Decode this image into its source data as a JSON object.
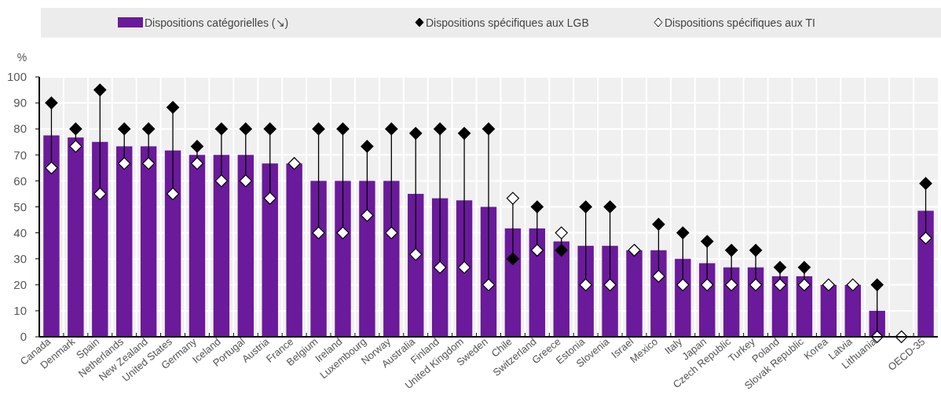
{
  "chart_data": {
    "type": "bar",
    "ylabel": "%",
    "categories": [
      "Canada",
      "Denmark",
      "Spain",
      "Netherlands",
      "New Zealand",
      "United States",
      "Germany",
      "Iceland",
      "Portugal",
      "Austria",
      "France",
      "Belgium",
      "Ireland",
      "Luxembourg",
      "Norway",
      "Australia",
      "Finland",
      "United Kingdom",
      "Sweden",
      "Chile",
      "Switzerland",
      "Greece",
      "Estonia",
      "Slovenia",
      "Israel",
      "Mexico",
      "Italy",
      "Japan",
      "Czech Republic",
      "Turkey",
      "Poland",
      "Slovak Republic",
      "Korea",
      "Latvia",
      "Lithuania",
      null,
      "OECD-35"
    ],
    "series": [
      {
        "name": "Dispositions catégorielles (↘)",
        "color": "#6a1a9a",
        "values": [
          77.5,
          76.7,
          75,
          73.3,
          73.3,
          71.7,
          70,
          70,
          70,
          66.7,
          66.7,
          60,
          60,
          60,
          60,
          55,
          53.3,
          52.5,
          50,
          41.7,
          41.7,
          36.7,
          35,
          35,
          33.3,
          33.3,
          30,
          28.3,
          26.7,
          26.7,
          23.3,
          23.3,
          20,
          20,
          10,
          null,
          48.5
        ]
      },
      {
        "name": "Dispositions spécifiques aux LGB",
        "type": "scatter",
        "color": "#000000",
        "marker": "diamond",
        "values": [
          90,
          80,
          95,
          80,
          80,
          88.3,
          73.3,
          80,
          80,
          80,
          null,
          80,
          80,
          73.3,
          80,
          78.3,
          80,
          78.3,
          80,
          30,
          50,
          33.3,
          50,
          50,
          null,
          43.3,
          40,
          36.7,
          33.3,
          33.3,
          26.7,
          26.7,
          null,
          null,
          20,
          null,
          59
        ]
      },
      {
        "name": "Dispositions spécifiques aux TI",
        "type": "scatter",
        "color": "#ffffff",
        "marker": "diamond",
        "values": [
          65,
          73.3,
          55,
          66.7,
          66.7,
          55,
          66.7,
          60,
          60,
          53.3,
          66.7,
          40,
          40,
          46.7,
          40,
          31.7,
          26.7,
          26.7,
          20,
          53.3,
          33.3,
          40,
          20,
          20,
          33.3,
          23.3,
          20,
          20,
          20,
          20,
          20,
          20,
          20,
          20,
          0,
          0,
          38
        ]
      }
    ],
    "ylim": [
      0,
      100
    ],
    "yticks": [
      0,
      10,
      20,
      30,
      40,
      50,
      60,
      70,
      80,
      90,
      100
    ],
    "grid": true,
    "legend": "top"
  }
}
